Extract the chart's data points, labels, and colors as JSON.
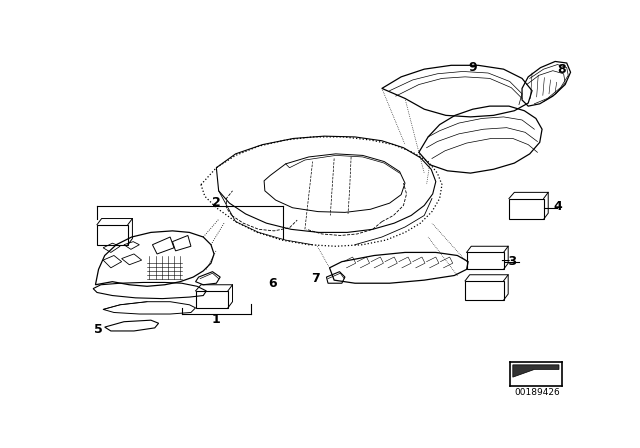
{
  "bg_color": "#ffffff",
  "line_color": "#000000",
  "fig_width": 6.4,
  "fig_height": 4.48,
  "dpi": 100,
  "part_number": "00189426",
  "lw": 0.7
}
